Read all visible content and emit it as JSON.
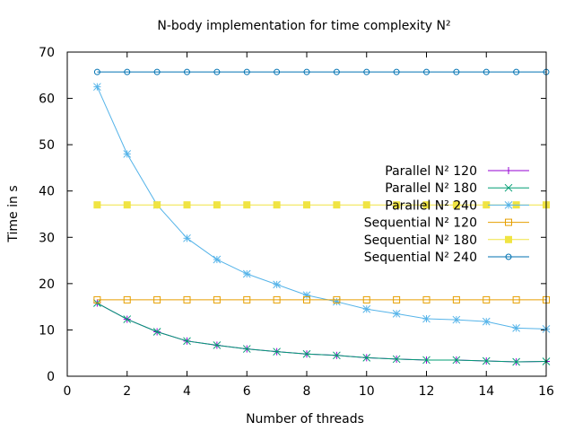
{
  "chart_data": {
    "type": "line",
    "title": "N-body implementation for time complexity N²",
    "xlabel": "Number of threads",
    "ylabel": "Time in s",
    "xlim": [
      0,
      16
    ],
    "ylim": [
      0,
      70
    ],
    "xticks": [
      0,
      2,
      4,
      6,
      8,
      10,
      12,
      14,
      16
    ],
    "yticks": [
      0,
      10,
      20,
      30,
      40,
      50,
      60,
      70
    ],
    "grid": false,
    "legend_position": "right",
    "x": [
      1,
      2,
      3,
      4,
      5,
      6,
      7,
      8,
      9,
      10,
      11,
      12,
      13,
      14,
      15,
      16
    ],
    "series": [
      {
        "name": "Parallel N² 120",
        "color": "#9400d3",
        "marker": "plus",
        "values": [
          15.8,
          12.3,
          9.6,
          7.6,
          6.7,
          5.9,
          5.3,
          4.8,
          4.5,
          4.0,
          3.7,
          3.5,
          3.5,
          3.3,
          3.1,
          3.2
        ]
      },
      {
        "name": "Parallel N² 180",
        "color": "#009e73",
        "marker": "cross",
        "values": [
          15.8,
          12.3,
          9.6,
          7.6,
          6.7,
          5.9,
          5.3,
          4.8,
          4.5,
          4.0,
          3.7,
          3.5,
          3.5,
          3.3,
          3.1,
          3.2
        ]
      },
      {
        "name": "Parallel N² 240",
        "color": "#56b4e9",
        "marker": "star",
        "values": [
          62.5,
          48.0,
          37.0,
          29.8,
          25.2,
          22.1,
          19.8,
          17.5,
          16.1,
          14.5,
          13.5,
          12.4,
          12.2,
          11.8,
          10.4,
          10.2
        ]
      },
      {
        "name": "Sequential N² 120",
        "color": "#e69f00",
        "marker": "open-square",
        "values": [
          16.5,
          16.5,
          16.5,
          16.5,
          16.5,
          16.5,
          16.5,
          16.5,
          16.5,
          16.5,
          16.5,
          16.5,
          16.5,
          16.5,
          16.5,
          16.5
        ]
      },
      {
        "name": "Sequential N² 180",
        "color": "#f0e442",
        "marker": "filled-square",
        "values": [
          37.0,
          37.0,
          37.0,
          37.0,
          37.0,
          37.0,
          37.0,
          37.0,
          37.0,
          37.0,
          37.0,
          37.0,
          37.0,
          37.0,
          37.0,
          37.0
        ]
      },
      {
        "name": "Sequential N² 240",
        "color": "#0072b2",
        "marker": "open-circle",
        "values": [
          65.7,
          65.7,
          65.7,
          65.7,
          65.7,
          65.7,
          65.7,
          65.7,
          65.7,
          65.7,
          65.7,
          65.7,
          65.7,
          65.7,
          65.7,
          65.7
        ]
      }
    ]
  }
}
